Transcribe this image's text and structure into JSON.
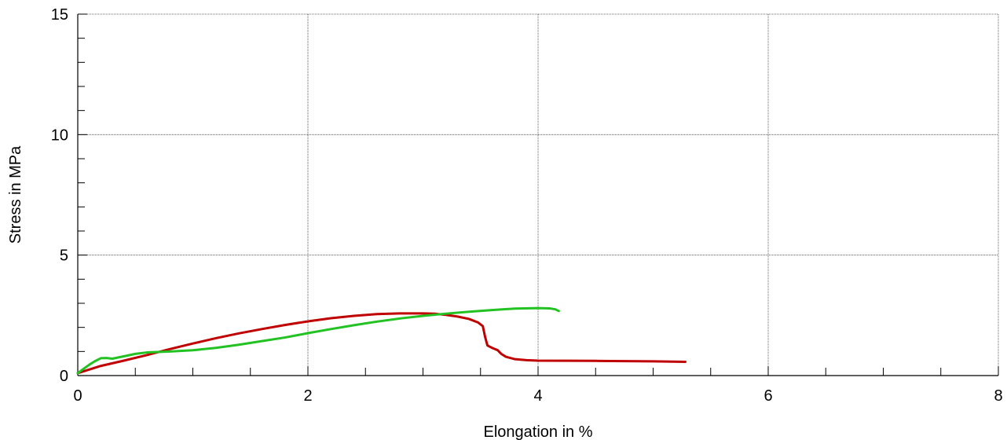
{
  "chart_data": {
    "type": "line",
    "title": "",
    "xlabel": "Elongation in %",
    "ylabel": "Stress in MPa",
    "xlim": [
      0,
      8
    ],
    "ylim": [
      0,
      15
    ],
    "x_ticks": [
      0,
      2,
      4,
      6,
      8
    ],
    "y_ticks": [
      0,
      5,
      10,
      15
    ],
    "x_tick_labels": [
      "0",
      "2",
      "4",
      "6",
      "8"
    ],
    "y_tick_labels": [
      "0",
      "5",
      "10",
      "15"
    ],
    "x_minor_step": 0.5,
    "y_minor_step": 1,
    "grid": true,
    "legend": "none",
    "series": [
      {
        "color": "#c00000",
        "points": [
          [
            0.0,
            0.1
          ],
          [
            0.1,
            0.25
          ],
          [
            0.2,
            0.4
          ],
          [
            0.4,
            0.62
          ],
          [
            0.6,
            0.85
          ],
          [
            0.8,
            1.1
          ],
          [
            1.0,
            1.33
          ],
          [
            1.2,
            1.55
          ],
          [
            1.4,
            1.75
          ],
          [
            1.6,
            1.93
          ],
          [
            1.8,
            2.1
          ],
          [
            2.0,
            2.25
          ],
          [
            2.2,
            2.38
          ],
          [
            2.4,
            2.48
          ],
          [
            2.6,
            2.55
          ],
          [
            2.8,
            2.58
          ],
          [
            3.0,
            2.58
          ],
          [
            3.1,
            2.57
          ],
          [
            3.2,
            2.52
          ],
          [
            3.3,
            2.45
          ],
          [
            3.4,
            2.35
          ],
          [
            3.48,
            2.2
          ],
          [
            3.52,
            2.05
          ],
          [
            3.54,
            1.6
          ],
          [
            3.56,
            1.25
          ],
          [
            3.6,
            1.15
          ],
          [
            3.65,
            1.05
          ],
          [
            3.68,
            0.9
          ],
          [
            3.72,
            0.78
          ],
          [
            3.8,
            0.68
          ],
          [
            3.9,
            0.64
          ],
          [
            4.0,
            0.62
          ],
          [
            4.5,
            0.61
          ],
          [
            5.0,
            0.59
          ],
          [
            5.28,
            0.57
          ]
        ]
      },
      {
        "color": "#22c222",
        "points": [
          [
            0.0,
            0.1
          ],
          [
            0.05,
            0.28
          ],
          [
            0.1,
            0.45
          ],
          [
            0.15,
            0.6
          ],
          [
            0.2,
            0.72
          ],
          [
            0.25,
            0.73
          ],
          [
            0.3,
            0.7
          ],
          [
            0.4,
            0.8
          ],
          [
            0.5,
            0.9
          ],
          [
            0.6,
            0.96
          ],
          [
            0.8,
            1.0
          ],
          [
            1.0,
            1.05
          ],
          [
            1.2,
            1.15
          ],
          [
            1.4,
            1.28
          ],
          [
            1.6,
            1.43
          ],
          [
            1.8,
            1.58
          ],
          [
            2.0,
            1.76
          ],
          [
            2.2,
            1.93
          ],
          [
            2.4,
            2.09
          ],
          [
            2.6,
            2.24
          ],
          [
            2.8,
            2.37
          ],
          [
            3.0,
            2.48
          ],
          [
            3.2,
            2.57
          ],
          [
            3.4,
            2.65
          ],
          [
            3.6,
            2.72
          ],
          [
            3.8,
            2.78
          ],
          [
            4.0,
            2.8
          ],
          [
            4.1,
            2.79
          ],
          [
            4.15,
            2.75
          ],
          [
            4.18,
            2.68
          ]
        ]
      }
    ]
  }
}
